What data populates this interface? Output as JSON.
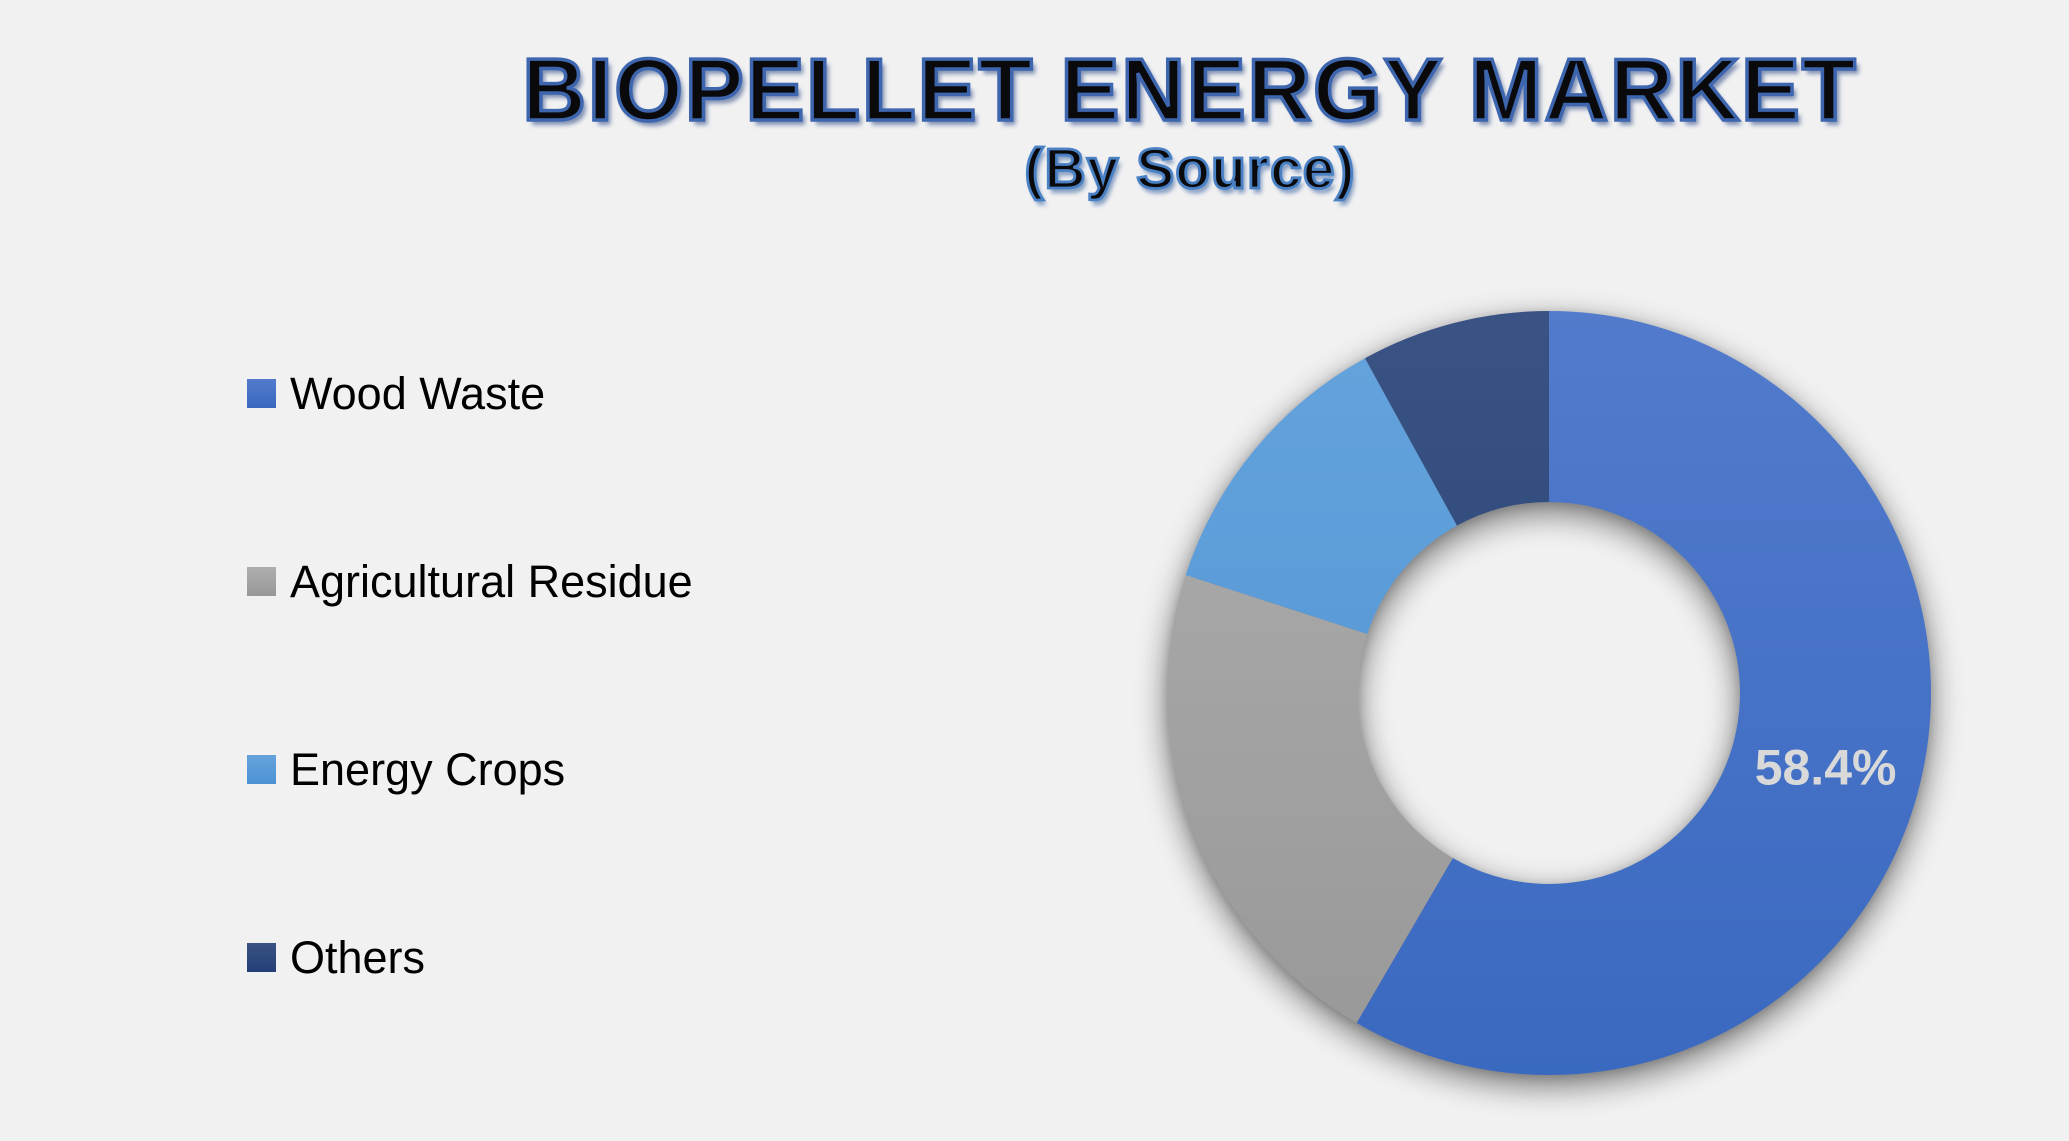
{
  "page": {
    "background": "#f1f1f2"
  },
  "header": {
    "title": "BIOPELLET ENERGY MARKET",
    "subtitle": "(By Source)",
    "title_fill": "#0a0a0c",
    "title_outline": "#3e66ae",
    "subtitle_outline": "#4a80c4"
  },
  "chart_data": {
    "type": "pie",
    "subtype": "donut",
    "title": "BIOPELLET ENERGY MARKET",
    "subtitle": "(By Source)",
    "categories": [
      "Wood Waste",
      "Agricultural Residue",
      "Energy Crops",
      "Others"
    ],
    "values": [
      58.4,
      21.6,
      12.0,
      8.0
    ],
    "data_labels": [
      "58.4%",
      "",
      "",
      ""
    ],
    "label_color": "#d9d9d9",
    "colors": [
      {
        "top": "#527bcc",
        "bottom": "#3a69c0"
      },
      {
        "top": "#aeaeae",
        "bottom": "#989898"
      },
      {
        "top": "#65a3dc",
        "bottom": "#4c92d3"
      },
      {
        "top": "#3a5384",
        "bottom": "#233f75"
      }
    ],
    "start_angle_deg": 0,
    "direction": "clockwise",
    "donut_hole_ratio": 0.5,
    "legend_position": "left",
    "background_color": "#f1f1f2"
  }
}
